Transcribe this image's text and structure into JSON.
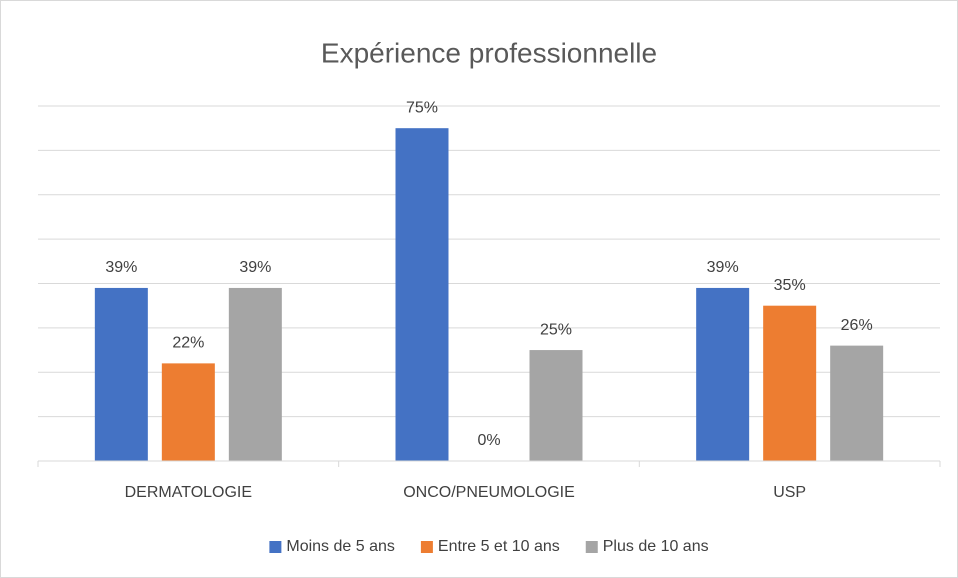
{
  "chart_data": {
    "type": "bar",
    "title": "Expérience professionnelle",
    "categories": [
      "DERMATOLOGIE",
      "ONCO/PNEUMOLOGIE",
      "USP"
    ],
    "series": [
      {
        "name": "Moins de 5 ans",
        "color": "#4472c4",
        "values": [
          39,
          75,
          39
        ],
        "value_labels": [
          "39%",
          "75%",
          "39%"
        ]
      },
      {
        "name": "Entre 5 et 10 ans",
        "color": "#ed7d31",
        "values": [
          22,
          0,
          35
        ],
        "value_labels": [
          "22%",
          "0%",
          "35%"
        ]
      },
      {
        "name": "Plus de 10 ans",
        "color": "#a5a5a5",
        "values": [
          39,
          25,
          26
        ],
        "value_labels": [
          "39%",
          "25%",
          "26%"
        ]
      }
    ],
    "ylim": [
      0,
      80
    ],
    "yticks": [
      0,
      10,
      20,
      30,
      40,
      50,
      60,
      70,
      80
    ],
    "grid": true,
    "legend": "bottom"
  }
}
